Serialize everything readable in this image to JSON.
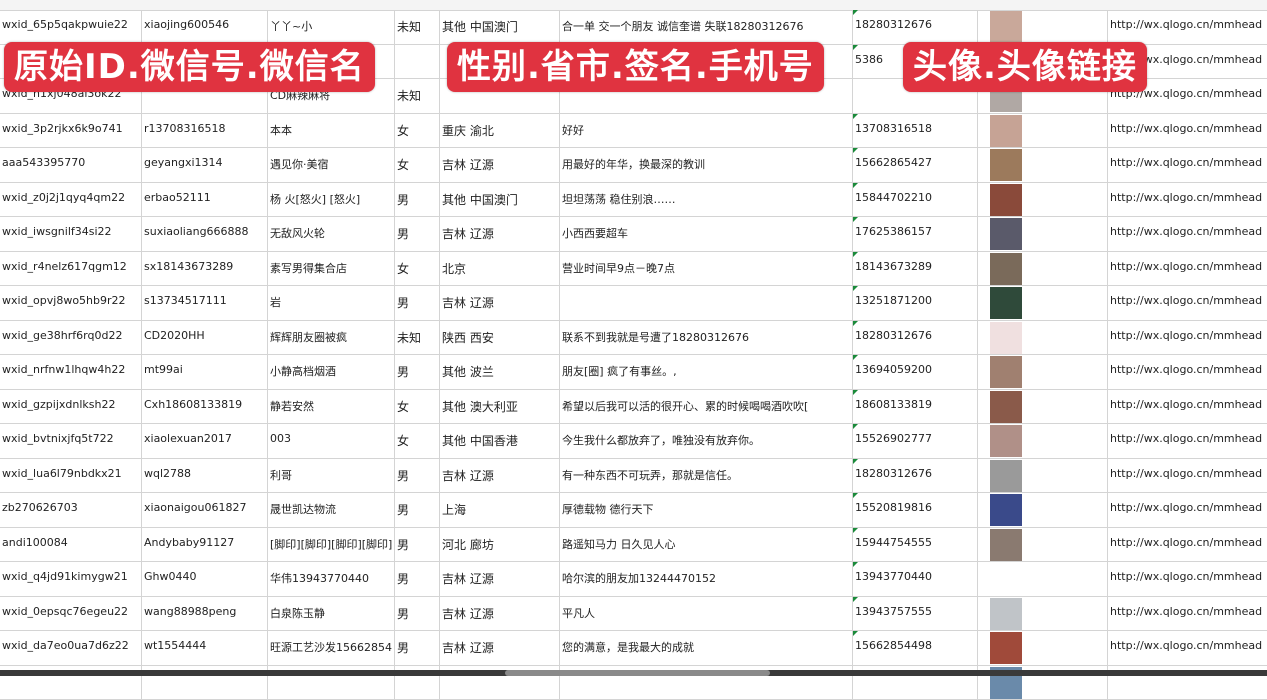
{
  "overlay_labels": [
    "原始ID.微信号.微信名",
    "性别.省市.签名.手机号",
    "头像.头像链接"
  ],
  "colors": {
    "label_bg": "#e03340",
    "grid": "#d4d4d4",
    "comment_marker": "#1a8a3a"
  },
  "rows": [
    {
      "id": "wxid_65p5qakpwuie22",
      "wechat": "xiaojing600546",
      "name": "丫丫~小",
      "gender": "未知",
      "region": "其他 中国澳门",
      "signature": "合一单 交一个朋友 诚信奎谱 失联18280312676",
      "phone": "18280312676",
      "avatar_color": "#c9a89a",
      "url": "http://wx.qlogo.cn/mmhead"
    },
    {
      "id": "",
      "wechat": "",
      "name": "",
      "gender": "",
      "region": "",
      "signature": "",
      "phone": "5386",
      "avatar_color": "#6f7fa0",
      "url": "http://wx.qlogo.cn/mmhead"
    },
    {
      "id": "wxid_h1xj048al3ok22",
      "wechat": "",
      "name": "CD麻辣麻将",
      "gender": "未知",
      "region": "",
      "signature": "",
      "phone": "",
      "avatar_color": "#b0a8a4",
      "url": "http://wx.qlogo.cn/mmhead"
    },
    {
      "id": "wxid_3p2rjkx6k9o741",
      "wechat": "r13708316518",
      "name": "本本",
      "gender": "女",
      "region": "重庆 渝北",
      "signature": "好好",
      "phone": "13708316518",
      "avatar_color": "#c6a395",
      "url": "http://wx.qlogo.cn/mmhead"
    },
    {
      "id": "aaa543395770",
      "wechat": "geyangxi1314",
      "name": "遇见你·美宿",
      "gender": "女",
      "region": "吉林 辽源",
      "signature": "用最好的年华，换最深的教训",
      "phone": "15662865427",
      "avatar_color": "#9c7a5c",
      "url": "http://wx.qlogo.cn/mmhead"
    },
    {
      "id": "wxid_z0j2j1qyq4qm22",
      "wechat": "erbao52111",
      "name": "杨 火[怒火] [怒火]",
      "gender": "男",
      "region": "其他 中国澳门",
      "signature": "坦坦荡荡 稳住别浪……",
      "phone": "15844702210",
      "avatar_color": "#8a4a3a",
      "url": "http://wx.qlogo.cn/mmhead"
    },
    {
      "id": "wxid_iwsgnilf34si22",
      "wechat": "suxiaoliang666888",
      "name": "无敌风火轮",
      "gender": "男",
      "region": "吉林 辽源",
      "signature": "小西西要超车",
      "phone": "17625386157",
      "avatar_color": "#5a5a6a",
      "url": "http://wx.qlogo.cn/mmhead"
    },
    {
      "id": "wxid_r4nelz617qgm12",
      "wechat": "sx18143673289",
      "name": "素写男得集合店",
      "gender": "女",
      "region": "北京",
      "signature": "营业时间早9点－晚7点",
      "phone": "18143673289",
      "avatar_color": "#7a6a5a",
      "url": "http://wx.qlogo.cn/mmhead"
    },
    {
      "id": "wxid_opvj8wo5hb9r22",
      "wechat": "s13734517111",
      "name": "岩",
      "gender": "男",
      "region": "吉林 辽源",
      "signature": "",
      "phone": "13251871200",
      "avatar_color": "#2f4a3a",
      "url": "http://wx.qlogo.cn/mmhead"
    },
    {
      "id": "wxid_ge38hrf6rq0d22",
      "wechat": "CD2020HH",
      "name": "辉辉朋友圈被疯",
      "gender": "未知",
      "region": "陕西 西安",
      "signature": "联系不到我就是号遭了18280312676",
      "phone": "18280312676",
      "avatar_color": "#f0e0e0",
      "url": "http://wx.qlogo.cn/mmhead"
    },
    {
      "id": "wxid_nrfnw1lhqw4h22",
      "wechat": "mt99ai",
      "name": "小静高档烟酒",
      "gender": "男",
      "region": "其他 波兰",
      "signature": "朋友[圈] 疯了有事丝。,",
      "phone": "13694059200",
      "avatar_color": "#a08070",
      "url": "http://wx.qlogo.cn/mmhead"
    },
    {
      "id": "wxid_gzpijxdnlksh22",
      "wechat": "Cxh18608133819",
      "name": "静若安然",
      "gender": "女",
      "region": "其他 澳大利亚",
      "signature": "希望以后我可以活的很开心、累的时候喝喝酒吹吹[",
      "phone": "18608133819",
      "avatar_color": "#8a5a4a",
      "url": "http://wx.qlogo.cn/mmhead"
    },
    {
      "id": "wxid_bvtnixjfq5t722",
      "wechat": "xiaolexuan2017",
      "name": "003",
      "gender": "女",
      "region": "其他 中国香港",
      "signature": "今生我什么都放弃了，唯独没有放弃你。",
      "phone": "15526902777",
      "avatar_color": "#b09088",
      "url": "http://wx.qlogo.cn/mmhead"
    },
    {
      "id": "wxid_lua6l79nbdkx21",
      "wechat": "wql2788",
      "name": "利哥",
      "gender": "男",
      "region": "吉林 辽源",
      "signature": "有一种东西不可玩弄，那就是信任。",
      "phone": "18280312676",
      "avatar_color": "#9a9a9a",
      "url": "http://wx.qlogo.cn/mmhead"
    },
    {
      "id": "zb270626703",
      "wechat": "xiaonaigou061827",
      "name": "晟世凯达物流",
      "gender": "男",
      "region": "上海",
      "signature": "厚德载物 德行天下",
      "phone": "15520819816",
      "avatar_color": "#3a4a8a",
      "url": "http://wx.qlogo.cn/mmhead"
    },
    {
      "id": "andi100084",
      "wechat": "Andybaby91127",
      "name": "[脚印][脚印][脚印][脚印]",
      "gender": "男",
      "region": "河北 廊坊",
      "signature": "路遥知马力 日久见人心",
      "phone": "15944754555",
      "avatar_color": "#8a7a70",
      "url": "http://wx.qlogo.cn/mmhead"
    },
    {
      "id": "wxid_q4jd91kimygw21",
      "wechat": "Ghw0440",
      "name": "华伟13943770440",
      "gender": "男",
      "region": "吉林 辽源",
      "signature": "哈尔滨的朋友加13244470152",
      "phone": "13943770440",
      "avatar_color": "#ffffff",
      "url": "http://wx.qlogo.cn/mmhead"
    },
    {
      "id": "wxid_0epsqc76egeu22",
      "wechat": "wang88988peng",
      "name": "白泉陈玉静",
      "gender": "男",
      "region": "吉林 辽源",
      "signature": "平凡人",
      "phone": "13943757555",
      "avatar_color": "#c0c4c8",
      "url": "http://wx.qlogo.cn/mmhead"
    },
    {
      "id": "wxid_da7eo0ua7d6z22",
      "wechat": "wt1554444",
      "name": "旺源工艺沙发15662854",
      "gender": "男",
      "region": "吉林 辽源",
      "signature": "您的满意，是我最大的成就",
      "phone": "15662854498",
      "avatar_color": "#a04a3a",
      "url": "http://wx.qlogo.cn/mmhead"
    },
    {
      "id": "",
      "wechat": "",
      "name": "",
      "gender": "",
      "region": "",
      "signature": "",
      "phone": "",
      "avatar_color": "#6a8aaa",
      "url": ""
    }
  ]
}
